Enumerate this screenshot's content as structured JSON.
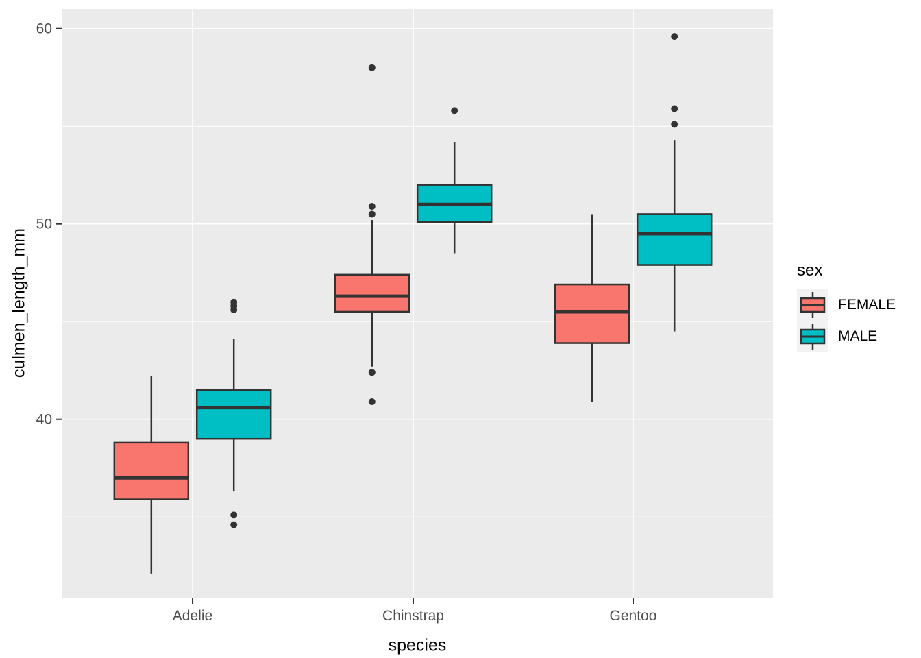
{
  "chart_data": {
    "type": "boxplot",
    "title": "",
    "xlabel": "species",
    "ylabel": "culmen_length_mm",
    "categories": [
      "Adelie",
      "Chinstrap",
      "Gentoo"
    ],
    "y_axis": {
      "ticks": [
        40,
        50,
        60
      ],
      "minor_ticks": [
        35,
        45,
        55
      ],
      "range": [
        30.8,
        61.0
      ],
      "grid": true
    },
    "legend": {
      "title": "sex",
      "position": "right",
      "entries": [
        {
          "label": "FEMALE",
          "color": "#F8766D"
        },
        {
          "label": "MALE",
          "color": "#00BFC4"
        }
      ]
    },
    "series": [
      {
        "name": "FEMALE",
        "color": "#F8766D",
        "boxes": [
          {
            "category": "Adelie",
            "whisker_low": 32.1,
            "q1": 35.9,
            "median": 37.0,
            "q3": 38.8,
            "whisker_high": 42.2,
            "outliers": []
          },
          {
            "category": "Chinstrap",
            "whisker_low": 42.7,
            "q1": 45.5,
            "median": 46.3,
            "q3": 47.4,
            "whisker_high": 50.2,
            "outliers": [
              40.9,
              42.4,
              50.5,
              50.9,
              58.0
            ]
          },
          {
            "category": "Gentoo",
            "whisker_low": 40.9,
            "q1": 43.9,
            "median": 45.5,
            "q3": 46.9,
            "whisker_high": 50.5,
            "outliers": []
          }
        ]
      },
      {
        "name": "MALE",
        "color": "#00BFC4",
        "boxes": [
          {
            "category": "Adelie",
            "whisker_low": 36.3,
            "q1": 39.0,
            "median": 40.6,
            "q3": 41.5,
            "whisker_high": 44.1,
            "outliers": [
              34.6,
              35.1,
              45.6,
              45.8,
              46.0
            ]
          },
          {
            "category": "Chinstrap",
            "whisker_low": 48.5,
            "q1": 50.1,
            "median": 51.0,
            "q3": 52.0,
            "whisker_high": 54.2,
            "outliers": [
              55.8
            ]
          },
          {
            "category": "Gentoo",
            "whisker_low": 44.5,
            "q1": 47.9,
            "median": 49.5,
            "q3": 50.5,
            "whisker_high": 54.3,
            "outliers": [
              55.1,
              55.9,
              59.6
            ]
          }
        ]
      }
    ],
    "style": {
      "panel_bg": "#EBEBEB",
      "grid_color": "#FFFFFF",
      "box_border": "#333333",
      "outlier_color": "#333333",
      "axis_text_color": "#4D4D4D",
      "axis_title_color": "#000000",
      "legend_key_bg": "#F2F2F2"
    }
  }
}
